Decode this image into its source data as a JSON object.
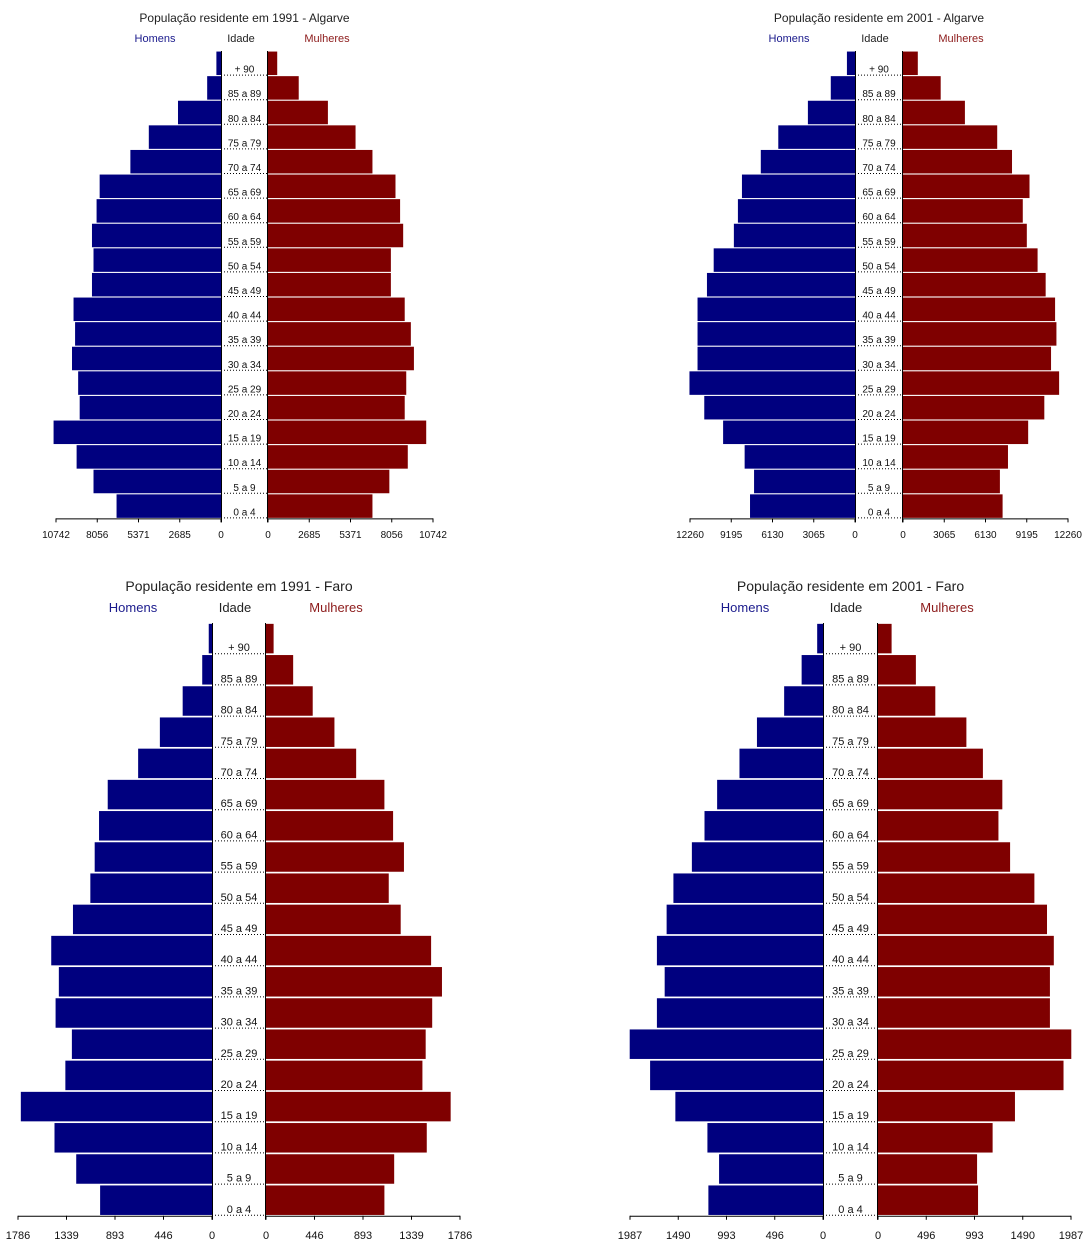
{
  "chart_data": [
    {
      "type": "bar",
      "title": "População residente em 1991 - Algarve",
      "header": {
        "men": "Homens",
        "age": "Idade",
        "women": "Mulheres"
      },
      "categories": [
        "0 a 4",
        "5 a 9",
        "10 a 14",
        "15 a 19",
        "20 a 24",
        "25 a 29",
        "30 a 34",
        "35 a 39",
        "40 a 44",
        "45 a 49",
        "50 a 54",
        "55 a 59",
        "60 a 64",
        "65 a 69",
        "70 a 74",
        "75 a 79",
        "80 a 84",
        "85 a 89",
        "+ 90"
      ],
      "series": [
        {
          "name": "Homens",
          "values": [
            6800,
            8300,
            9400,
            10900,
            9200,
            9300,
            9700,
            9500,
            9600,
            8400,
            8300,
            8400,
            8100,
            7900,
            5900,
            4700,
            2800,
            900,
            300
          ]
        },
        {
          "name": "Mulheres",
          "values": [
            6800,
            7900,
            9100,
            10300,
            8900,
            9000,
            9500,
            9300,
            8900,
            8000,
            8000,
            8800,
            8600,
            8300,
            6800,
            5700,
            3900,
            2000,
            600
          ]
        }
      ],
      "ticks": [
        "10742",
        "8056",
        "5371",
        "2685",
        "0",
        "0",
        "2685",
        "5371",
        "8056",
        "10742"
      ],
      "xlim": [
        0,
        10742
      ],
      "colors": {
        "men": "#00007f",
        "women": "#7f0000"
      }
    },
    {
      "type": "bar",
      "title": "População residente em 2001 - Algarve",
      "header": {
        "men": "Homens",
        "age": "Idade",
        "women": "Mulheres"
      },
      "categories": [
        "0 a 4",
        "5 a 9",
        "10 a 14",
        "15 a 19",
        "20 a 24",
        "25 a 29",
        "30 a 34",
        "35 a 39",
        "40 a 44",
        "45 a 49",
        "50 a 54",
        "55 a 59",
        "60 a 64",
        "65 a 69",
        "70 a 74",
        "75 a 79",
        "80 a 84",
        "85 a 89",
        "+ 90"
      ],
      "series": [
        {
          "name": "Homens",
          "values": [
            7800,
            7500,
            8200,
            9800,
            11200,
            12300,
            11700,
            11700,
            11700,
            11000,
            10500,
            9000,
            8700,
            8400,
            7000,
            5700,
            3500,
            1800,
            600
          ]
        },
        {
          "name": "Mulheres",
          "values": [
            7400,
            7200,
            7800,
            9300,
            10500,
            11600,
            11000,
            11400,
            11300,
            10600,
            10000,
            9200,
            8900,
            9400,
            8100,
            7000,
            4600,
            2800,
            1100
          ]
        }
      ],
      "ticks": [
        "12260",
        "9195",
        "6130",
        "3065",
        "0",
        "0",
        "3065",
        "6130",
        "9195",
        "12260"
      ],
      "xlim": [
        0,
        12260
      ],
      "colors": {
        "men": "#00007f",
        "women": "#7f0000"
      }
    },
    {
      "type": "bar",
      "title": "População residente em 1991 - Faro",
      "header": {
        "men": "Homens",
        "age": "Idade",
        "women": "Mulheres"
      },
      "categories": [
        "0 a 4",
        "5 a 9",
        "10 a 14",
        "15 a 19",
        "20 a 24",
        "25 a 29",
        "30 a 34",
        "35 a 39",
        "40 a 44",
        "45 a 49",
        "50 a 54",
        "55 a 59",
        "60 a 64",
        "65 a 69",
        "70 a 74",
        "75 a 79",
        "80 a 84",
        "85 a 89",
        "+ 90"
      ],
      "series": [
        {
          "name": "Homens",
          "values": [
            1030,
            1250,
            1450,
            1760,
            1350,
            1290,
            1440,
            1410,
            1480,
            1280,
            1120,
            1080,
            1040,
            960,
            680,
            480,
            270,
            90,
            30
          ]
        },
        {
          "name": "Mulheres",
          "values": [
            1090,
            1180,
            1480,
            1700,
            1440,
            1470,
            1530,
            1620,
            1520,
            1240,
            1130,
            1270,
            1170,
            1090,
            830,
            630,
            430,
            250,
            70
          ]
        }
      ],
      "ticks": [
        "1786",
        "1339",
        "893",
        "446",
        "0",
        "0",
        "446",
        "893",
        "1339",
        "1786"
      ],
      "xlim": [
        0,
        1786
      ],
      "colors": {
        "men": "#00007f",
        "women": "#7f0000"
      }
    },
    {
      "type": "bar",
      "title": "População residente em 2001 - Faro",
      "header": {
        "men": "Homens",
        "age": "Idade",
        "women": "Mulheres"
      },
      "categories": [
        "0 a 4",
        "5 a 9",
        "10 a 14",
        "15 a 19",
        "20 a 24",
        "25 a 29",
        "30 a 34",
        "35 a 39",
        "40 a 44",
        "45 a 49",
        "50 a 54",
        "55 a 59",
        "60 a 64",
        "65 a 69",
        "70 a 74",
        "75 a 79",
        "80 a 84",
        "85 a 89",
        "+ 90"
      ],
      "series": [
        {
          "name": "Homens",
          "values": [
            1180,
            1070,
            1190,
            1520,
            1780,
            1990,
            1710,
            1630,
            1710,
            1610,
            1540,
            1350,
            1220,
            1090,
            860,
            680,
            400,
            220,
            60
          ]
        },
        {
          "name": "Mulheres",
          "values": [
            1030,
            1020,
            1180,
            1410,
            1910,
            1990,
            1770,
            1770,
            1810,
            1740,
            1610,
            1360,
            1240,
            1280,
            1080,
            910,
            590,
            390,
            140
          ]
        }
      ],
      "ticks": [
        "1987",
        "1490",
        "993",
        "496",
        "0",
        "0",
        "496",
        "993",
        "1490",
        "1987"
      ],
      "xlim": [
        0,
        1987
      ],
      "colors": {
        "men": "#00007f",
        "women": "#7f0000"
      }
    }
  ]
}
